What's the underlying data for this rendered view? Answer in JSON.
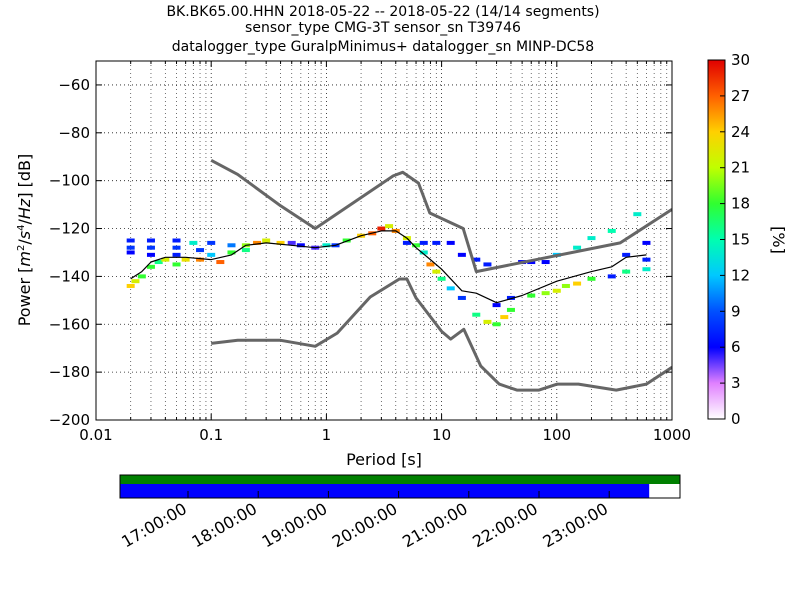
{
  "title": {
    "line1": "BK.BK65.00.HHN   2018-05-22 -- 2018-05-22  (14/14 segments)",
    "line2": "sensor_type CMG-3T sensor_sn T39746",
    "line3": "datalogger_type GuralpMinimus+ datalogger_sn MINP-DC58"
  },
  "chart_data": {
    "type": "heatmap",
    "xlabel": "Period [s]",
    "ylabel": "Power [m²/s⁴/Hz] [dB]",
    "ylabel_parts": {
      "prefix": "Power [",
      "m": "m",
      "s": "s",
      "Hz": "Hz",
      "suffix": "] [dB]",
      "exp2": "2",
      "exp4": "4"
    },
    "x_scale": "log",
    "xlim": [
      0.01,
      1000
    ],
    "ylim": [
      -200,
      -50
    ],
    "x_ticks": [
      0.01,
      0.1,
      1,
      10,
      100,
      1000
    ],
    "x_tick_labels": [
      "0.01",
      "0.1",
      "1",
      "10",
      "100",
      "1000"
    ],
    "y_ticks": [
      -60,
      -80,
      -100,
      -120,
      -140,
      -160,
      -180,
      -200
    ],
    "y_tick_labels": [
      "−60",
      "−80",
      "−100",
      "−120",
      "−140",
      "−160",
      "−180",
      "−200"
    ],
    "grid": "dotted",
    "colorbar": {
      "label": "[%]",
      "range": [
        0,
        30
      ],
      "ticks": [
        0,
        3,
        6,
        9,
        12,
        15,
        18,
        21,
        24,
        27,
        30
      ],
      "tick_labels": [
        "0",
        "3",
        "6",
        "9",
        "12",
        "15",
        "18",
        "21",
        "24",
        "27",
        "30"
      ]
    },
    "noise_model_high": {
      "x": [
        0.1,
        0.17,
        0.4,
        0.8,
        3.8,
        4.6,
        6.3,
        7.9,
        15.4,
        20,
        354.8,
        1000
      ],
      "y": [
        -91.5,
        -97.4,
        -110.5,
        -120,
        -98,
        -96.5,
        -101,
        -113.5,
        -120,
        -138,
        -126,
        -112
      ]
    },
    "noise_model_low": {
      "x": [
        0.1,
        0.17,
        0.4,
        0.8,
        1.24,
        2.4,
        4.3,
        5,
        6,
        10,
        12,
        15.6,
        21.9,
        31.6,
        45,
        70,
        101,
        154,
        328,
        600,
        1000
      ],
      "y": [
        -168,
        -166.7,
        -166.7,
        -169.2,
        -163.7,
        -148.6,
        -141.1,
        -141.1,
        -149,
        -163,
        -166.2,
        -162.1,
        -177.5,
        -185,
        -187.5,
        -187.5,
        -185,
        -185,
        -187.5,
        -185,
        -178
      ]
    },
    "mode_line": {
      "x": [
        0.02,
        0.025,
        0.03,
        0.04,
        0.06,
        0.1,
        0.15,
        0.2,
        0.3,
        0.5,
        0.8,
        1.2,
        2,
        3,
        4,
        5,
        6,
        8,
        10,
        15,
        20,
        30,
        50,
        100,
        200,
        300,
        400,
        600
      ],
      "y": [
        -141,
        -138,
        -134,
        -132,
        -132,
        -133,
        -131,
        -127,
        -126,
        -127,
        -128,
        -127,
        -123,
        -121,
        -121,
        -124,
        -128,
        -133,
        -137,
        -146,
        -147,
        -151,
        -148,
        -142,
        -138,
        -136,
        -132,
        -131
      ]
    },
    "ppsd_bins": [
      {
        "x": 0.02,
        "y": -144,
        "pct": 24
      },
      {
        "x": 0.022,
        "y": -142,
        "pct": 22
      },
      {
        "x": 0.025,
        "y": -140,
        "pct": 18
      },
      {
        "x": 0.02,
        "y": -125,
        "pct": 7
      },
      {
        "x": 0.02,
        "y": -128,
        "pct": 8
      },
      {
        "x": 0.02,
        "y": -130,
        "pct": 6
      },
      {
        "x": 0.03,
        "y": -125,
        "pct": 7
      },
      {
        "x": 0.03,
        "y": -128,
        "pct": 8
      },
      {
        "x": 0.03,
        "y": -131,
        "pct": 6
      },
      {
        "x": 0.03,
        "y": -136,
        "pct": 18
      },
      {
        "x": 0.035,
        "y": -134,
        "pct": 16
      },
      {
        "x": 0.04,
        "y": -133,
        "pct": 22
      },
      {
        "x": 0.05,
        "y": -125,
        "pct": 7
      },
      {
        "x": 0.05,
        "y": -128,
        "pct": 8
      },
      {
        "x": 0.05,
        "y": -131,
        "pct": 7
      },
      {
        "x": 0.05,
        "y": -135,
        "pct": 18
      },
      {
        "x": 0.06,
        "y": -133,
        "pct": 23
      },
      {
        "x": 0.07,
        "y": -126,
        "pct": 14
      },
      {
        "x": 0.08,
        "y": -129,
        "pct": 8
      },
      {
        "x": 0.08,
        "y": -133,
        "pct": 26
      },
      {
        "x": 0.1,
        "y": -126,
        "pct": 8
      },
      {
        "x": 0.1,
        "y": -131,
        "pct": 12
      },
      {
        "x": 0.12,
        "y": -134,
        "pct": 27
      },
      {
        "x": 0.15,
        "y": -127,
        "pct": 10
      },
      {
        "x": 0.15,
        "y": -130,
        "pct": 18
      },
      {
        "x": 0.2,
        "y": -127,
        "pct": 20
      },
      {
        "x": 0.2,
        "y": -129,
        "pct": 16
      },
      {
        "x": 0.25,
        "y": -126,
        "pct": 26
      },
      {
        "x": 0.3,
        "y": -125,
        "pct": 22
      },
      {
        "x": 0.4,
        "y": -126,
        "pct": 24
      },
      {
        "x": 0.5,
        "y": -126,
        "pct": 5
      },
      {
        "x": 0.6,
        "y": -127,
        "pct": 6
      },
      {
        "x": 0.8,
        "y": -128,
        "pct": 5
      },
      {
        "x": 1,
        "y": -127,
        "pct": 14
      },
      {
        "x": 1.2,
        "y": -127,
        "pct": 8
      },
      {
        "x": 1.5,
        "y": -125,
        "pct": 18
      },
      {
        "x": 2,
        "y": -123,
        "pct": 24
      },
      {
        "x": 2.5,
        "y": -122,
        "pct": 27
      },
      {
        "x": 3,
        "y": -120,
        "pct": 29
      },
      {
        "x": 3.5,
        "y": -119,
        "pct": 22
      },
      {
        "x": 4,
        "y": -121,
        "pct": 26
      },
      {
        "x": 5,
        "y": -124,
        "pct": 22
      },
      {
        "x": 6,
        "y": -127,
        "pct": 18
      },
      {
        "x": 7,
        "y": -130,
        "pct": 14
      },
      {
        "x": 5,
        "y": -126,
        "pct": 7
      },
      {
        "x": 7,
        "y": -126,
        "pct": 7
      },
      {
        "x": 9,
        "y": -126,
        "pct": 7
      },
      {
        "x": 12,
        "y": -126,
        "pct": 6
      },
      {
        "x": 8,
        "y": -135,
        "pct": 26
      },
      {
        "x": 9,
        "y": -138,
        "pct": 22
      },
      {
        "x": 10,
        "y": -141,
        "pct": 16
      },
      {
        "x": 15,
        "y": -131,
        "pct": 6
      },
      {
        "x": 20,
        "y": -133,
        "pct": 7
      },
      {
        "x": 25,
        "y": -135,
        "pct": 7
      },
      {
        "x": 12,
        "y": -145,
        "pct": 12
      },
      {
        "x": 15,
        "y": -149,
        "pct": 8
      },
      {
        "x": 20,
        "y": -156,
        "pct": 16
      },
      {
        "x": 25,
        "y": -159,
        "pct": 22
      },
      {
        "x": 30,
        "y": -160,
        "pct": 18
      },
      {
        "x": 35,
        "y": -157,
        "pct": 24
      },
      {
        "x": 40,
        "y": -154,
        "pct": 18
      },
      {
        "x": 30,
        "y": -152,
        "pct": 6
      },
      {
        "x": 40,
        "y": -149,
        "pct": 7
      },
      {
        "x": 50,
        "y": -134,
        "pct": 6
      },
      {
        "x": 60,
        "y": -134,
        "pct": 6
      },
      {
        "x": 80,
        "y": -134,
        "pct": 6
      },
      {
        "x": 60,
        "y": -148,
        "pct": 18
      },
      {
        "x": 80,
        "y": -147,
        "pct": 20
      },
      {
        "x": 100,
        "y": -146,
        "pct": 22
      },
      {
        "x": 120,
        "y": -144,
        "pct": 20
      },
      {
        "x": 150,
        "y": -143,
        "pct": 24
      },
      {
        "x": 200,
        "y": -141,
        "pct": 18
      },
      {
        "x": 100,
        "y": -131,
        "pct": 12
      },
      {
        "x": 150,
        "y": -128,
        "pct": 14
      },
      {
        "x": 200,
        "y": -124,
        "pct": 14
      },
      {
        "x": 300,
        "y": -121,
        "pct": 15
      },
      {
        "x": 500,
        "y": -114,
        "pct": 14
      },
      {
        "x": 300,
        "y": -140,
        "pct": 7
      },
      {
        "x": 400,
        "y": -138,
        "pct": 16
      },
      {
        "x": 600,
        "y": -137,
        "pct": 14
      },
      {
        "x": 600,
        "y": -126,
        "pct": 6
      },
      {
        "x": 400,
        "y": -131,
        "pct": 7
      },
      {
        "x": 600,
        "y": -133,
        "pct": 7
      }
    ]
  },
  "timeline": {
    "tick_labels": [
      "17:00:00",
      "18:00:00",
      "19:00:00",
      "20:00:00",
      "21:00:00",
      "22:00:00",
      "23:00:00"
    ],
    "coverage_color": "#008000",
    "data_color": "#0000ff",
    "data_fraction": 0.945
  }
}
